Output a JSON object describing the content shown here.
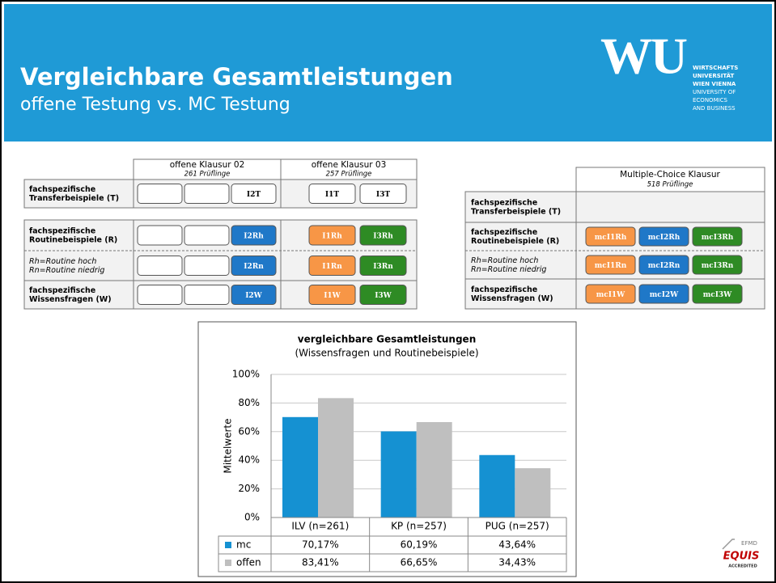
{
  "header": {
    "title": "Vergleichbare Gesamtleistungen",
    "subtitle": "offene Testung vs. MC Testung",
    "logo_mark": "WU",
    "logo_lines": [
      "WIRTSCHAFTS",
      "UNIVERSITÄT",
      "WIEN VIENNA",
      "UNIVERSITY OF",
      "ECONOMICS",
      "AND BUSINESS"
    ]
  },
  "row_labels": [
    [
      "fachspezifische",
      "Transferbeispiele (T)"
    ],
    [
      "fachspezifische",
      "Routinebeispiele (R)"
    ],
    [
      "Rh=Routine hoch",
      "Rn=Routine niedrig"
    ],
    [
      "fachspezifische",
      "Wissensfragen (W)"
    ]
  ],
  "open_table": {
    "columns": [
      {
        "title": "offene Klausur 02",
        "subtitle": "261 Prüflinge",
        "rows": [
          [
            {
              "label": "I2T",
              "color": "#ffffff"
            }
          ],
          [
            {
              "label": "I2Rh",
              "color": "#1f78c8"
            }
          ],
          [
            {
              "label": "I2Rn",
              "color": "#1f78c8"
            }
          ],
          [
            {
              "label": "I2W",
              "color": "#1f78c8"
            }
          ]
        ]
      },
      {
        "title": "offene Klausur 03",
        "subtitle": "257 Prüflinge",
        "rows": [
          [
            {
              "label": "I1T",
              "color": "#ffffff"
            },
            {
              "label": "I3T",
              "color": "#ffffff"
            }
          ],
          [
            {
              "label": "I1Rh",
              "color": "#f79646"
            },
            {
              "label": "I3Rh",
              "color": "#2e8b24"
            }
          ],
          [
            {
              "label": "I1Rn",
              "color": "#f79646"
            },
            {
              "label": "I3Rn",
              "color": "#2e8b24"
            }
          ],
          [
            {
              "label": "I1W",
              "color": "#f79646"
            },
            {
              "label": "I3W",
              "color": "#2e8b24"
            }
          ]
        ]
      }
    ]
  },
  "mc_table": {
    "title": "Multiple-Choice Klausur",
    "subtitle": "518 Prüflinge",
    "rows": [
      [],
      [
        {
          "label": "mcI1Rh",
          "color": "#f79646"
        },
        {
          "label": "mcI2Rh",
          "color": "#1f78c8"
        },
        {
          "label": "mcI3Rh",
          "color": "#2e8b24"
        }
      ],
      [
        {
          "label": "mcI1Rn",
          "color": "#f79646"
        },
        {
          "label": "mcI2Rn",
          "color": "#1f78c8"
        },
        {
          "label": "mcI3Rn",
          "color": "#2e8b24"
        }
      ],
      [
        {
          "label": "mcI1W",
          "color": "#f79646"
        },
        {
          "label": "mcI2W",
          "color": "#1f78c8"
        },
        {
          "label": "mcI3W",
          "color": "#2e8b24"
        }
      ]
    ]
  },
  "chart_data": {
    "type": "bar",
    "title": "vergleichbare Gesamtleistungen",
    "subtitle": "(Wissensfragen und Routinebeispiele)",
    "y_label": "Mittelwerte",
    "categories": [
      "ILV (n=261)",
      "KP   (n=257)",
      "PUG (n=257)"
    ],
    "series": [
      {
        "name": "mc",
        "color": "#1591d2",
        "values": [
          70.17,
          60.19,
          43.64
        ],
        "value_labels": [
          "70,17%",
          "60,19%",
          "43,64%"
        ]
      },
      {
        "name": "offen",
        "color": "#bfbfbf",
        "values": [
          83.41,
          66.65,
          34.43
        ],
        "value_labels": [
          "83,41%",
          "66,65%",
          "34,43%"
        ]
      }
    ],
    "ylim": [
      0,
      100
    ],
    "yticks": [
      {
        "value": 0,
        "label": "0%"
      },
      {
        "value": 20,
        "label": "20%"
      },
      {
        "value": 40,
        "label": "40%"
      },
      {
        "value": 60,
        "label": "60%"
      },
      {
        "value": 80,
        "label": "80%"
      },
      {
        "value": 100,
        "label": "100%"
      }
    ],
    "grid": true
  },
  "accreditation": {
    "small": "EFMD",
    "name": "EQUIS",
    "sub": "ACCREDITED"
  }
}
